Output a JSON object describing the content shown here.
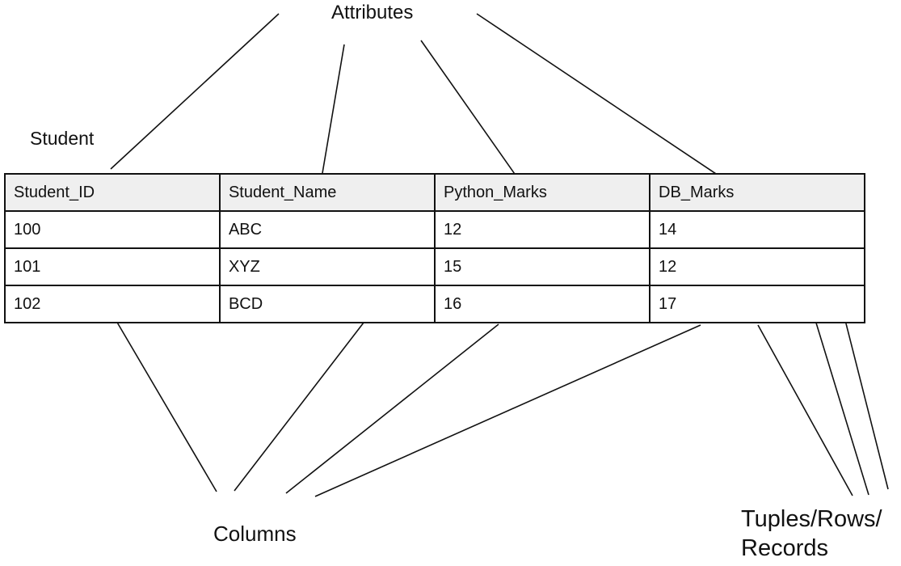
{
  "labels": {
    "attributes": "Attributes",
    "table_name": "Student",
    "columns": "Columns",
    "tuples": "Tuples/Rows/ Records"
  },
  "table": {
    "headers": [
      "Student_ID",
      "Student_Name",
      "Python_Marks",
      "DB_Marks"
    ],
    "rows": [
      [
        "100",
        "ABC",
        "12",
        "14"
      ],
      [
        "101",
        "XYZ",
        "15",
        "12"
      ],
      [
        "102",
        "BCD",
        "16",
        "17"
      ]
    ]
  },
  "colors": {
    "header_bg": "#efefef",
    "line": "#111111"
  }
}
